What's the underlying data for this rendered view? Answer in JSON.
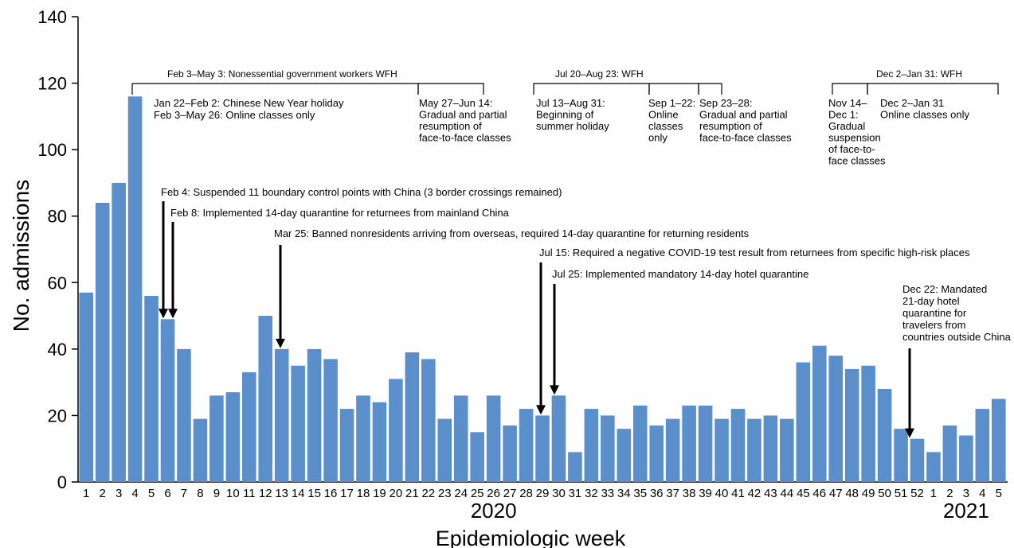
{
  "chart_data": {
    "type": "bar",
    "xlabel": "Epidemiologic week",
    "ylabel": "No. admissions",
    "ylim": [
      0,
      140
    ],
    "yticks": [
      0,
      20,
      40,
      60,
      80,
      100,
      120,
      140
    ],
    "year_labels": [
      {
        "text": "2020",
        "week_index": 25
      },
      {
        "text": "2021",
        "week_index": 54
      }
    ],
    "categories": [
      "1",
      "2",
      "3",
      "4",
      "5",
      "6",
      "7",
      "8",
      "9",
      "10",
      "11",
      "12",
      "13",
      "14",
      "15",
      "16",
      "17",
      "18",
      "19",
      "20",
      "21",
      "22",
      "23",
      "24",
      "25",
      "26",
      "27",
      "28",
      "29",
      "30",
      "31",
      "32",
      "33",
      "34",
      "35",
      "36",
      "37",
      "38",
      "39",
      "40",
      "41",
      "42",
      "43",
      "44",
      "45",
      "46",
      "47",
      "48",
      "49",
      "50",
      "51",
      "52",
      "1",
      "2",
      "3",
      "4",
      "5"
    ],
    "values": [
      57,
      84,
      90,
      116,
      56,
      49,
      40,
      19,
      26,
      27,
      33,
      50,
      40,
      35,
      40,
      37,
      22,
      26,
      24,
      31,
      39,
      37,
      19,
      26,
      15,
      26,
      17,
      22,
      20,
      26,
      9,
      22,
      20,
      16,
      23,
      17,
      19,
      23,
      23,
      19,
      22,
      19,
      20,
      19,
      36,
      41,
      38,
      34,
      35,
      28,
      16,
      13,
      9,
      17,
      14,
      22,
      25
    ],
    "bar_color": "#5b8fcc",
    "period_labels": [
      {
        "text": "Feb 3–May 3: Nonessential government workers WFH"
      },
      {
        "text": "Jul 20–Aug 23: WFH"
      },
      {
        "text": "Dec 2–Jan 31: WFH"
      }
    ],
    "school_periods": [
      {
        "lines": [
          "Jan 22–Feb 2: Chinese New Year holiday",
          "Feb 3–May 26: Online classes only"
        ]
      },
      {
        "lines": [
          "May 27–Jun 14:",
          "Gradual and partial",
          "resumption of",
          "face-to-face classes"
        ]
      },
      {
        "lines": [
          "Jul 13–Aug 31:",
          "Beginning of",
          "summer holiday"
        ]
      },
      {
        "lines": [
          "Sep 1–22:",
          "Online",
          "classes",
          "only"
        ]
      },
      {
        "lines": [
          "Sep 23–28:",
          "Gradual and partial",
          "resumption of",
          "face-to-face classes"
        ]
      },
      {
        "lines": [
          "Nov 14–",
          "Dec 1:",
          "Gradual",
          "suspension",
          "of face-to-",
          "face classes"
        ]
      },
      {
        "lines": [
          "Dec 2–Jan 31",
          "Online classes only"
        ]
      }
    ],
    "annotations": [
      {
        "lines": [
          "Feb 4: Suspended 11 boundary control points with China (3 border crossings remained)"
        ],
        "week_index": 5,
        "value": 49
      },
      {
        "lines": [
          "Feb 8: Implemented 14-day quarantine for returnees from mainland China"
        ],
        "week_index": 5,
        "value": 49
      },
      {
        "lines": [
          "Mar 25: Banned nonresidents arriving from overseas, required 14-day quarantine for returning residents"
        ],
        "week_index": 12,
        "value": 40
      },
      {
        "lines": [
          "Jul 15: Required a negative COVID-19 test result from returnees from specific high-risk places"
        ],
        "week_index": 28,
        "value": 20
      },
      {
        "lines": [
          "Jul 25: Implemented mandatory 14-day hotel quarantine"
        ],
        "week_index": 29,
        "value": 26
      },
      {
        "lines": [
          "Dec 22: Mandated",
          "21-day hotel",
          "quarantine for",
          "travelers from",
          "countries outside China"
        ],
        "week_index": 51,
        "value": 13
      }
    ]
  }
}
